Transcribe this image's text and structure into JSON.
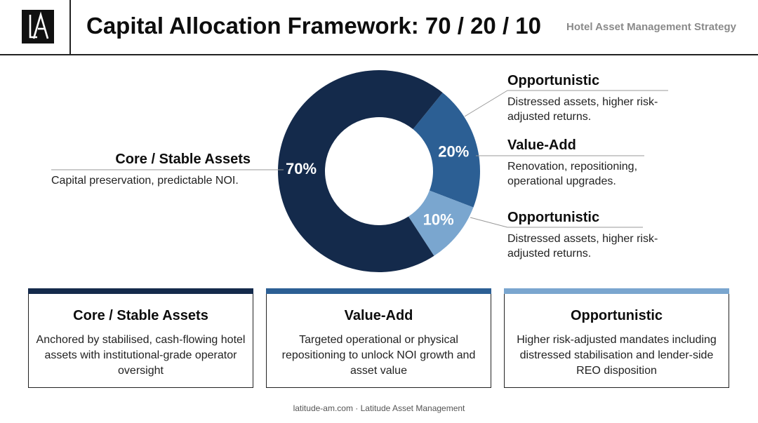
{
  "header": {
    "title": "Capital Allocation Framework: 70 / 20 / 10",
    "subtitle": "Hotel Asset Management Strategy"
  },
  "colors": {
    "core": "#142a4b",
    "value_add": "#2c5f94",
    "opportunistic": "#7aa6cf",
    "divider": "#222222"
  },
  "chart_data": {
    "type": "pie",
    "title": "",
    "donut": true,
    "slices": [
      {
        "label": "Core / Stable Assets",
        "value": 70,
        "display": "70%",
        "color": "#142a4b"
      },
      {
        "label": "Value-Add",
        "value": 20,
        "display": "20%",
        "color": "#2c5f94"
      },
      {
        "label": "Opportunistic",
        "value": 10,
        "display": "10%",
        "color": "#7aa6cf"
      }
    ]
  },
  "callouts": {
    "core": {
      "heading": "Core / Stable Assets",
      "desc": "Capital preservation, predictable NOI."
    },
    "opportunistic_top": {
      "heading": "Opportunistic",
      "desc": "Distressed assets, higher risk-adjusted returns."
    },
    "value_add": {
      "heading": "Value-Add",
      "desc": "Renovation, repositioning, operational upgrades."
    },
    "opportunistic_bottom": {
      "heading": "Opportunistic",
      "desc": "Distressed assets, higher risk-adjusted returns."
    }
  },
  "cards": [
    {
      "title": "Core / Stable Assets",
      "desc": "Anchored by stabilised, cash-flowing hotel assets with institutional-grade operator oversight",
      "color": "#142a4b"
    },
    {
      "title": "Value-Add",
      "desc": "Targeted operational or physical repositioning to unlock NOI growth and asset value",
      "color": "#2c5f94"
    },
    {
      "title": "Opportunistic",
      "desc": "Higher risk-adjusted mandates including distressed stabilisation and lender-side REO disposition",
      "color": "#7aa6cf"
    }
  ],
  "footer": "latitude-am.com · Latitude Asset Management"
}
